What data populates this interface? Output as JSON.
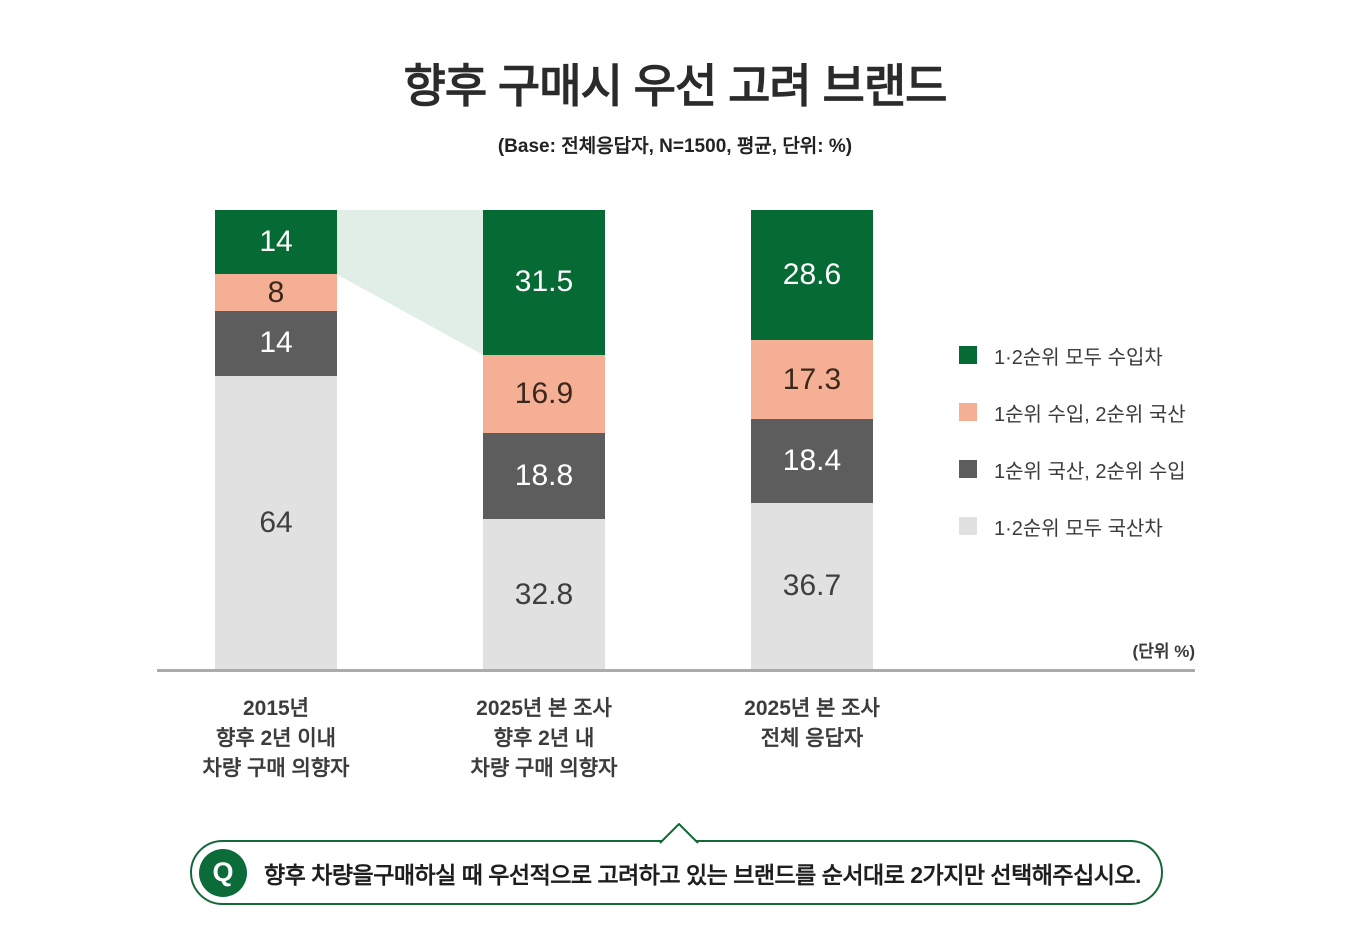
{
  "header": {
    "title": "향후 구매시 우선 고려 브랜드",
    "base_note": "(Base: 전체응답자, N=1500, 평균, 단위: %)"
  },
  "colors": {
    "green": "#066a35",
    "salmon": "#f5af94",
    "dark_gray": "#5d5d5d",
    "light_gray": "#e1e1e1",
    "connector": "#e0eee6",
    "axis": "#ababab",
    "q_border": "#156939",
    "q_circle": "#0b6b39"
  },
  "chart_data": {
    "type": "bar",
    "stacked": true,
    "orientation": "vertical",
    "unit_label": "(단위 %)",
    "categories": [
      "2015년\n향후 2년 이내\n차량 구매 의향자",
      "2025년 본 조사\n향후 2년 내\n차량 구매 의향자",
      "2025년 본 조사\n전체 응답자"
    ],
    "series": [
      {
        "name": "1·2순위 모두 수입차",
        "color_key": "green",
        "text_color": "#ffffff",
        "values": [
          14,
          31.5,
          28.6
        ],
        "labels": [
          "14",
          "31.5",
          "28.6"
        ]
      },
      {
        "name": "1순위 수입, 2순위 국산",
        "color_key": "salmon",
        "text_color": "#3b281c",
        "values": [
          8,
          16.9,
          17.3
        ],
        "labels": [
          "8",
          "16.9",
          "17.3"
        ]
      },
      {
        "name": "1순위 국산, 2순위 수입",
        "color_key": "dark_gray",
        "text_color": "#ffffff",
        "values": [
          14,
          18.8,
          18.4
        ],
        "labels": [
          "14",
          "18.8",
          "18.4"
        ]
      },
      {
        "name": "1·2순위 모두 국산차",
        "color_key": "light_gray",
        "text_color": "#3f3f3f",
        "values": [
          64,
          32.8,
          36.7
        ],
        "labels": [
          "64",
          "32.8",
          "36.7"
        ]
      }
    ],
    "connector": {
      "from_bar": 0,
      "to_bar": 1,
      "series_index": 0
    },
    "legend_position": "right",
    "ylim": [
      0,
      100
    ],
    "grid": false
  },
  "question": {
    "icon": "Q",
    "text": "향후 차량을구매하실 때 우선적으로 고려하고 있는 브랜드를 순서대로 2가지만 선택해주십시오."
  }
}
